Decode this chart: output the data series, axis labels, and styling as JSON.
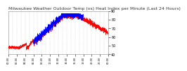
{
  "title": "Milwaukee Weather Outdoor Temp (vs) Heat Index per Minute (Last 24 Hours)",
  "background_color": "#ffffff",
  "plot_bg_color": "#ffffff",
  "grid_color": "#aaaaaa",
  "temp_color": "#ff0000",
  "heat_color": "#0000ff",
  "ylim": [
    40,
    90
  ],
  "yticks": [
    40,
    50,
    60,
    70,
    80,
    90
  ],
  "num_points": 1440,
  "title_fontsize": 4.5,
  "tick_fontsize": 3.5
}
